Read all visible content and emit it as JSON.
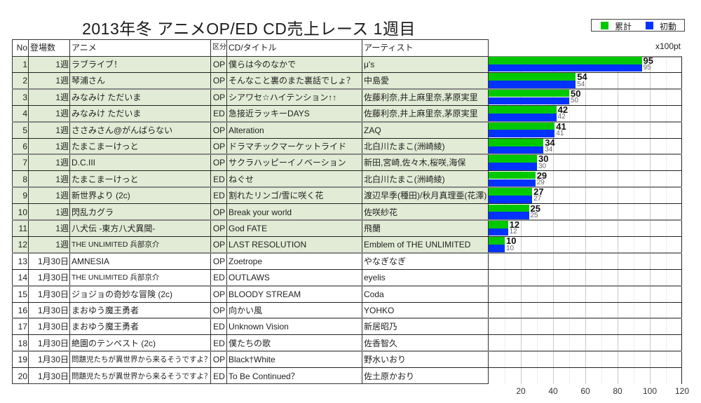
{
  "title": "2013年冬 アニメOP/ED CD売上レース 1週目",
  "legend": [
    {
      "label": "累計",
      "color": "#00c800"
    },
    {
      "label": "初動",
      "color": "#0033ff"
    }
  ],
  "table": {
    "headers": {
      "no": "No",
      "appearances": "登場数",
      "anime": "アニメ",
      "type": "区分",
      "title": "CD/タイトル",
      "artist": "アーティスト"
    },
    "highlight_color": "#e2ebd5",
    "rows": [
      {
        "no": "1",
        "appearances": "1週",
        "anime": "ラブライブ！",
        "type": "OP",
        "title": "僕らは今のなかで",
        "artist": "μ's",
        "highlight": true
      },
      {
        "no": "2",
        "appearances": "1週",
        "anime": "琴浦さん",
        "type": "OP",
        "title": "そんなこと裏のまた裏話でしょ？",
        "artist": "中島愛",
        "highlight": true
      },
      {
        "no": "3",
        "appearances": "1週",
        "anime": "みなみけ ただいま",
        "type": "OP",
        "title": "シアワセ☆ハイテンション↑↑",
        "artist": "佐藤利奈,井上麻里奈,茅原実里",
        "highlight": true
      },
      {
        "no": "4",
        "appearances": "1週",
        "anime": "みなみけ ただいま",
        "type": "ED",
        "title": "急接近ラッキーDAYS",
        "artist": "佐藤利奈,井上麻里奈,茅原実里",
        "highlight": true
      },
      {
        "no": "5",
        "appearances": "1週",
        "anime": "ささみさん@がんばらない",
        "type": "OP",
        "title": "Alteration",
        "artist": "ZAQ",
        "highlight": true
      },
      {
        "no": "6",
        "appearances": "1週",
        "anime": "たまこまーけっと",
        "type": "OP",
        "title": "ドラマチックマーケットライド",
        "artist": "北白川たまこ(洲崎綾)",
        "highlight": true
      },
      {
        "no": "7",
        "appearances": "1週",
        "anime": "D.C.III",
        "type": "OP",
        "title": "サクラハッピーイノベーション",
        "artist": "新田,宮崎,佐々木,桜咲,海保",
        "highlight": true
      },
      {
        "no": "8",
        "appearances": "1週",
        "anime": "たまこまーけっと",
        "type": "ED",
        "title": "ねぐせ",
        "artist": "北白川たまこ(洲崎綾)",
        "highlight": true
      },
      {
        "no": "9",
        "appearances": "1週",
        "anime": "新世界より (2c)",
        "type": "ED",
        "title": "割れたリンゴ/雪に咲く花",
        "artist": "渡辺早季(種田)/秋月真理亜(花澤)",
        "highlight": true
      },
      {
        "no": "10",
        "appearances": "1週",
        "anime": "閃乱カグラ",
        "type": "OP",
        "title": "Break your world",
        "artist": "佐咲紗花",
        "highlight": true
      },
      {
        "no": "11",
        "appearances": "1週",
        "anime": "八犬伝 -東方八犬異聞-",
        "type": "OP",
        "title": "God FATE",
        "artist": "飛蘭",
        "highlight": true
      },
      {
        "no": "12",
        "appearances": "1週",
        "anime": "THE UNLIMITED 兵部京介",
        "type": "OP",
        "title": "LΛST RESOLUTION",
        "artist": "Emblem of THE UNLIMITED",
        "highlight": true
      },
      {
        "no": "13",
        "appearances": "1月30日",
        "anime": "AMNESIA",
        "type": "OP",
        "title": "Zoetrope",
        "artist": "やなぎなぎ",
        "highlight": false
      },
      {
        "no": "14",
        "appearances": "1月30日",
        "anime": "THE UNLIMITED 兵部京介",
        "type": "ED",
        "title": "OUTLAWS",
        "artist": "eyelis",
        "highlight": false
      },
      {
        "no": "15",
        "appearances": "1月30日",
        "anime": "ジョジョの奇妙な冒険 (2c)",
        "type": "OP",
        "title": "BLOODY STREAM",
        "artist": "Coda",
        "highlight": false
      },
      {
        "no": "16",
        "appearances": "1月30日",
        "anime": "まおゆう魔王勇者",
        "type": "OP",
        "title": "向かい風",
        "artist": "YOHKO",
        "highlight": false
      },
      {
        "no": "17",
        "appearances": "1月30日",
        "anime": "まおゆう魔王勇者",
        "type": "ED",
        "title": "Unknown Vision",
        "artist": "新居昭乃",
        "highlight": false
      },
      {
        "no": "18",
        "appearances": "1月30日",
        "anime": "絶園のテンペスト (2c)",
        "type": "ED",
        "title": "僕たちの歌",
        "artist": "佐香智久",
        "highlight": false
      },
      {
        "no": "19",
        "appearances": "1月30日",
        "anime": "問題児たちが異世界から来るそうですよ？",
        "type": "OP",
        "title": "Black†White",
        "artist": "野水いおり",
        "highlight": false
      },
      {
        "no": "20",
        "appearances": "1月30日",
        "anime": "問題児たちが異世界から来るそうですよ？",
        "type": "ED",
        "title": "To Be Continued？",
        "artist": "佐土原かおり",
        "highlight": false
      }
    ]
  },
  "chart_data": {
    "type": "bar",
    "orientation": "horizontal",
    "title": "2013年冬 アニメOP/ED CD売上レース 1週目",
    "unit_label": "x100pt",
    "categories": [
      "1",
      "2",
      "3",
      "4",
      "5",
      "6",
      "7",
      "8",
      "9",
      "10",
      "11",
      "12",
      "13",
      "14",
      "15",
      "16",
      "17",
      "18",
      "19",
      "20"
    ],
    "series": [
      {
        "name": "累計",
        "color": "#00c800",
        "values": [
          95,
          54,
          50,
          42,
          41,
          34,
          30,
          29,
          27,
          25,
          12,
          10,
          null,
          null,
          null,
          null,
          null,
          null,
          null,
          null
        ]
      },
      {
        "name": "初動",
        "color": "#0033ff",
        "values": [
          95,
          54,
          50,
          42,
          41,
          34,
          30,
          29,
          27,
          25,
          12,
          10,
          null,
          null,
          null,
          null,
          null,
          null,
          null,
          null
        ]
      }
    ],
    "xlim": [
      0,
      120
    ],
    "xticks": [
      20,
      40,
      60,
      80,
      100,
      120
    ],
    "grid": true,
    "legend": "top-right"
  }
}
